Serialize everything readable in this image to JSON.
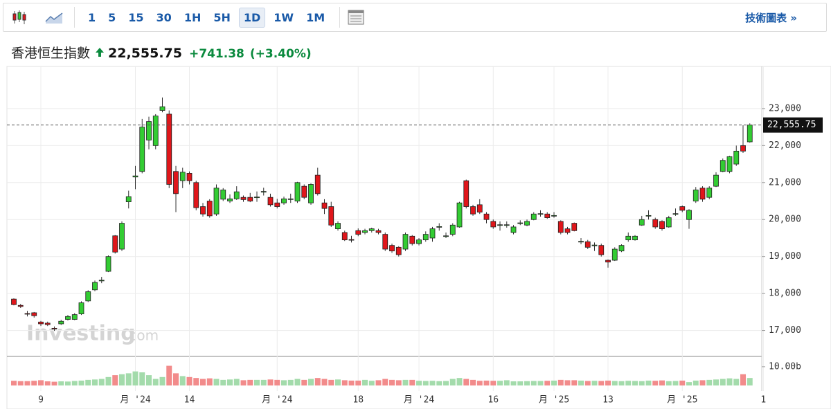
{
  "header": {
    "title": "香港恒生指數",
    "price": "22,555.75",
    "change": "+741.38",
    "change_pct": "(+3.40%)"
  },
  "toolbar": {
    "intervals": [
      "1",
      "5",
      "15",
      "30",
      "1H",
      "5H",
      "1D",
      "1W",
      "1M"
    ],
    "link": "技術圖表 »"
  },
  "watermark": {
    "brand": "Investing",
    "suffix": ".com"
  },
  "chart_data": {
    "type": "candlestick",
    "categories": [
      null,
      null,
      null,
      null,
      "9",
      null,
      null,
      null,
      null,
      null,
      null,
      null,
      null,
      null,
      null,
      null,
      null,
      null,
      "月 '24",
      null,
      null,
      null,
      null,
      null,
      null,
      null,
      "14",
      null,
      null,
      null,
      null,
      null,
      null,
      null,
      null,
      null,
      null,
      null,
      null,
      "月 '24",
      null,
      null,
      null,
      null,
      null,
      null,
      null,
      null,
      null,
      null,
      null,
      "18",
      null,
      null,
      null,
      null,
      null,
      null,
      null,
      null,
      "月 '24",
      null,
      null,
      null,
      null,
      null,
      null,
      null,
      null,
      null,
      null,
      "16",
      null,
      null,
      null,
      null,
      null,
      null,
      null,
      null,
      "月 '25",
      null,
      null,
      null,
      null,
      null,
      null,
      null,
      "13",
      null,
      null,
      null,
      null,
      null,
      null,
      null,
      null,
      null,
      null,
      "月 '25",
      null,
      null,
      null,
      null,
      null,
      null,
      null,
      null,
      null,
      null,
      null,
      "1"
    ],
    "open": [
      17850,
      17680,
      17460,
      17480,
      17230,
      17200,
      17060,
      17180,
      17300,
      17300,
      17450,
      17800,
      18100,
      18350,
      18600,
      19560,
      19200,
      20480,
      21150,
      21300,
      22150,
      22000,
      22950,
      22850,
      21300,
      21050,
      21250,
      21000,
      20350,
      20500,
      20150,
      20550,
      20500,
      20560,
      20600,
      20600,
      20600,
      20740,
      20600,
      20450,
      20450,
      20550,
      20500,
      20900,
      20450,
      21200,
      20450,
      20350,
      19750,
      19650,
      19460,
      19700,
      19650,
      19700,
      19700,
      19600,
      19300,
      19250,
      19200,
      19550,
      19350,
      19450,
      19500,
      19800,
      19550,
      19600,
      19800,
      21050,
      20350,
      20400,
      20150,
      19950,
      19850,
      19850,
      19650,
      19900,
      19850,
      20000,
      20150,
      20150,
      20100,
      19950,
      19750,
      19900,
      19400,
      19400,
      19300,
      19300,
      18900,
      18900,
      19150,
      19450,
      19450,
      19850,
      20100,
      20000,
      19950,
      19800,
      20150,
      20350,
      20000,
      20500,
      20850,
      20600,
      20900,
      21300,
      21300,
      21500,
      22000,
      22100,
      null,
      null
    ],
    "high": [
      17870,
      17720,
      17530,
      17500,
      17260,
      17240,
      17110,
      17290,
      17420,
      17470,
      17790,
      18090,
      18350,
      18450,
      19030,
      19580,
      19950,
      20780,
      21450,
      22720,
      22780,
      22850,
      23300,
      22950,
      21450,
      21400,
      21300,
      21050,
      20450,
      20550,
      20950,
      20850,
      20680,
      20900,
      20650,
      20720,
      20760,
      20860,
      20700,
      20560,
      20620,
      20700,
      21020,
      20950,
      20980,
      21400,
      20550,
      20480,
      19950,
      19700,
      19560,
      19760,
      19750,
      19780,
      19750,
      19650,
      19350,
      19280,
      19650,
      19580,
      19500,
      19680,
      19800,
      19900,
      19650,
      19900,
      20480,
      21080,
      20400,
      20550,
      20200,
      20000,
      19950,
      19950,
      19850,
      19980,
      20000,
      20200,
      20250,
      20200,
      20200,
      19980,
      19800,
      19920,
      19500,
      19450,
      19380,
      19350,
      18920,
      19250,
      19330,
      19650,
      19580,
      20100,
      20250,
      20050,
      19980,
      20100,
      20300,
      20380,
      20280,
      20880,
      20900,
      20900,
      21280,
      21650,
      21720,
      22000,
      22550,
      22600,
      null,
      null
    ],
    "low": [
      17680,
      17610,
      17380,
      17350,
      17120,
      17120,
      16990,
      17150,
      17270,
      17280,
      17420,
      17770,
      18060,
      18280,
      18580,
      19080,
      19150,
      20300,
      20820,
      21250,
      21900,
      21900,
      22900,
      20850,
      20200,
      20850,
      20950,
      20250,
      20080,
      20050,
      20100,
      20500,
      20450,
      20530,
      20480,
      20470,
      20480,
      20650,
      20350,
      20300,
      20400,
      20450,
      20450,
      20550,
      20400,
      20650,
      20150,
      19800,
      19700,
      19420,
      19380,
      19550,
      19600,
      19650,
      19600,
      19150,
      19100,
      19000,
      19150,
      19300,
      19300,
      19400,
      19400,
      19700,
      19500,
      19550,
      19780,
      20300,
      20100,
      20150,
      19900,
      19750,
      19700,
      19780,
      19600,
      19850,
      19820,
      19980,
      20080,
      20020,
      20050,
      19600,
      19600,
      19680,
      19330,
      19200,
      19150,
      19000,
      18700,
      18880,
      19120,
      19400,
      19430,
      19830,
      20000,
      19750,
      19700,
      19780,
      20100,
      20200,
      19750,
      20450,
      20480,
      20550,
      20880,
      21280,
      21250,
      21450,
      21800,
      22080,
      null,
      null
    ],
    "close": [
      17700,
      17650,
      17450,
      17400,
      17180,
      17160,
      17040,
      17250,
      17380,
      17430,
      17750,
      18050,
      18300,
      18360,
      19000,
      19120,
      19900,
      20620,
      21180,
      22500,
      22650,
      22800,
      23050,
      20950,
      20700,
      21280,
      21050,
      20320,
      20150,
      20100,
      20850,
      20800,
      20560,
      20750,
      20540,
      20500,
      20610,
      20760,
      20400,
      20350,
      20560,
      20560,
      21000,
      20600,
      20950,
      20700,
      20300,
      19850,
      19900,
      19450,
      19450,
      19600,
      19700,
      19750,
      19650,
      19200,
      19150,
      19050,
      19600,
      19350,
      19450,
      19600,
      19750,
      19810,
      19560,
      19850,
      20450,
      20350,
      20150,
      20200,
      20000,
      19800,
      19860,
      19860,
      19800,
      19910,
      19950,
      20150,
      20160,
      20050,
      20110,
      19650,
      19650,
      19700,
      19410,
      19250,
      19310,
      19050,
      18850,
      19200,
      19300,
      19550,
      19550,
      20000,
      20110,
      19800,
      19750,
      20050,
      20160,
      20250,
      20250,
      20800,
      20550,
      20850,
      21200,
      21600,
      21700,
      21850,
      21850,
      22555.75,
      null,
      null
    ],
    "up_color": "#33cc33",
    "down_color": "#e0161b",
    "ylim": [
      16300,
      23840
    ],
    "yticks": [
      {
        "value": 17000,
        "label": "17,000"
      },
      {
        "value": 18000,
        "label": "18,000"
      },
      {
        "value": 19000,
        "label": "19,000"
      },
      {
        "value": 20000,
        "label": "20,000"
      },
      {
        "value": 21000,
        "label": "21,000"
      },
      {
        "value": 22000,
        "label": "22,000"
      },
      {
        "value": 23000,
        "label": "23,000"
      }
    ],
    "grid": true,
    "price_line": {
      "value": 22555.75,
      "label": "22,555.75"
    },
    "volume": {
      "values": [
        2.5,
        2.3,
        2.3,
        2.5,
        2.8,
        2.2,
        2.0,
        2.2,
        2.1,
        2.4,
        2.6,
        3.0,
        3.2,
        3.5,
        4.5,
        5.5,
        6.0,
        6.5,
        7.5,
        7.0,
        5.5,
        3.5,
        4.5,
        10.5,
        6.5,
        5.0,
        4.5,
        4.0,
        3.5,
        3.8,
        3.5,
        3.0,
        3.2,
        3.5,
        2.8,
        3.0,
        3.0,
        3.0,
        3.2,
        3.0,
        2.8,
        3.0,
        3.5,
        3.0,
        3.5,
        4.0,
        3.5,
        3.0,
        3.2,
        2.8,
        2.6,
        2.6,
        3.0,
        2.5,
        2.8,
        3.5,
        3.0,
        2.8,
        3.0,
        3.0,
        2.5,
        2.4,
        2.5,
        2.3,
        2.4,
        3.5,
        4.0,
        3.5,
        3.0,
        2.5,
        2.6,
        2.5,
        2.5,
        2.8,
        2.2,
        2.2,
        2.3,
        2.4,
        2.4,
        2.5,
        2.6,
        3.0,
        2.8,
        2.8,
        2.6,
        2.4,
        2.5,
        2.4,
        2.6,
        2.4,
        2.3,
        2.5,
        2.4,
        2.3,
        2.6,
        2.5,
        2.7,
        2.3,
        2.4,
        2.6,
        1.8,
        2.6,
        2.8,
        3.0,
        3.2,
        3.5,
        3.8,
        3.5,
        6.0,
        4.0,
        null,
        null
      ],
      "ylim": [
        0,
        15.5
      ],
      "yticks": [
        {
          "value": 10,
          "label": "10.00b"
        }
      ],
      "up_color": "#a3dbab",
      "down_color": "#f28b8b"
    }
  }
}
